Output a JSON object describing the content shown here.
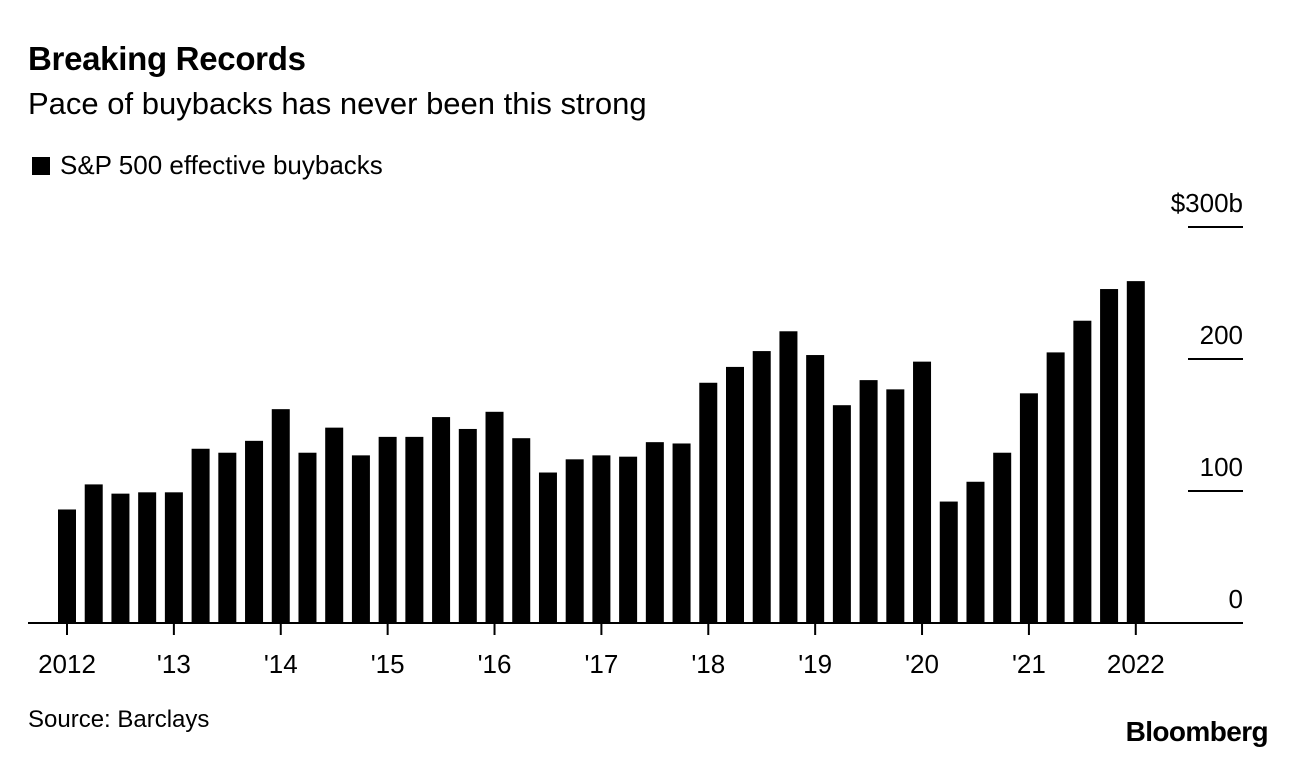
{
  "header": {
    "title": "Breaking Records",
    "subtitle": "Pace of buybacks has never been this strong"
  },
  "footer": {
    "source": "Source: Barclays",
    "brand": "Bloomberg"
  },
  "colors": {
    "bar": "#000000",
    "axis": "#000000"
  },
  "chart_data": {
    "type": "bar",
    "title": "Breaking Records",
    "subtitle": "Pace of buybacks has never been this strong",
    "legend": [
      "S&P 500 effective buybacks"
    ],
    "legend_position": "top-left",
    "xlabel": "",
    "ylabel": "",
    "ylim": [
      0,
      300
    ],
    "yticks": [
      0,
      100,
      200,
      300
    ],
    "ytick_labels": [
      "0",
      "100",
      "200",
      "$300b"
    ],
    "y_axis_side": "right",
    "x_tick_labels": [
      "2012",
      "'13",
      "'14",
      "'15",
      "'16",
      "'17",
      "'18",
      "'19",
      "'20",
      "'21",
      "2022"
    ],
    "x_tick_quarter_index": [
      0,
      4,
      8,
      12,
      16,
      20,
      24,
      28,
      32,
      36,
      40
    ],
    "categories": [
      "2012 Q1",
      "2012 Q2",
      "2012 Q3",
      "2012 Q4",
      "2013 Q1",
      "2013 Q2",
      "2013 Q3",
      "2013 Q4",
      "2014 Q1",
      "2014 Q2",
      "2014 Q3",
      "2014 Q4",
      "2015 Q1",
      "2015 Q2",
      "2015 Q3",
      "2015 Q4",
      "2016 Q1",
      "2016 Q2",
      "2016 Q3",
      "2016 Q4",
      "2017 Q1",
      "2017 Q2",
      "2017 Q3",
      "2017 Q4",
      "2018 Q1",
      "2018 Q2",
      "2018 Q3",
      "2018 Q4",
      "2019 Q1",
      "2019 Q2",
      "2019 Q3",
      "2019 Q4",
      "2020 Q1",
      "2020 Q2",
      "2020 Q3",
      "2020 Q4",
      "2021 Q1",
      "2021 Q2",
      "2021 Q3",
      "2021 Q4",
      "2022 Q1"
    ],
    "series": [
      {
        "name": "S&P 500 effective buybacks",
        "values": [
          86,
          105,
          98,
          99,
          99,
          132,
          129,
          138,
          162,
          129,
          148,
          127,
          141,
          141,
          156,
          147,
          160,
          140,
          114,
          124,
          127,
          126,
          137,
          136,
          182,
          194,
          206,
          221,
          203,
          165,
          184,
          177,
          198,
          92,
          107,
          129,
          174,
          205,
          229,
          253,
          259
        ]
      }
    ]
  }
}
